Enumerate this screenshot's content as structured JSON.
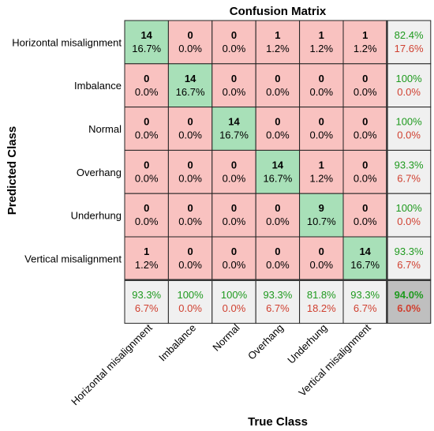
{
  "chart_data": {
    "type": "heatmap",
    "title": "Confusion Matrix",
    "xlabel": "True Class",
    "ylabel": "Predicted Class",
    "classes": [
      "Horizontal misalignment",
      "Imbalance",
      "Normal",
      "Overhang",
      "Underhung",
      "Vertical misalignment"
    ],
    "cells": [
      [
        {
          "count": "14",
          "pct": "16.7%"
        },
        {
          "count": "0",
          "pct": "0.0%"
        },
        {
          "count": "0",
          "pct": "0.0%"
        },
        {
          "count": "1",
          "pct": "1.2%"
        },
        {
          "count": "1",
          "pct": "1.2%"
        },
        {
          "count": "1",
          "pct": "1.2%"
        }
      ],
      [
        {
          "count": "0",
          "pct": "0.0%"
        },
        {
          "count": "14",
          "pct": "16.7%"
        },
        {
          "count": "0",
          "pct": "0.0%"
        },
        {
          "count": "0",
          "pct": "0.0%"
        },
        {
          "count": "0",
          "pct": "0.0%"
        },
        {
          "count": "0",
          "pct": "0.0%"
        }
      ],
      [
        {
          "count": "0",
          "pct": "0.0%"
        },
        {
          "count": "0",
          "pct": "0.0%"
        },
        {
          "count": "14",
          "pct": "16.7%"
        },
        {
          "count": "0",
          "pct": "0.0%"
        },
        {
          "count": "0",
          "pct": "0.0%"
        },
        {
          "count": "0",
          "pct": "0.0%"
        }
      ],
      [
        {
          "count": "0",
          "pct": "0.0%"
        },
        {
          "count": "0",
          "pct": "0.0%"
        },
        {
          "count": "0",
          "pct": "0.0%"
        },
        {
          "count": "14",
          "pct": "16.7%"
        },
        {
          "count": "1",
          "pct": "1.2%"
        },
        {
          "count": "0",
          "pct": "0.0%"
        }
      ],
      [
        {
          "count": "0",
          "pct": "0.0%"
        },
        {
          "count": "0",
          "pct": "0.0%"
        },
        {
          "count": "0",
          "pct": "0.0%"
        },
        {
          "count": "0",
          "pct": "0.0%"
        },
        {
          "count": "9",
          "pct": "10.7%"
        },
        {
          "count": "0",
          "pct": "0.0%"
        }
      ],
      [
        {
          "count": "1",
          "pct": "1.2%"
        },
        {
          "count": "0",
          "pct": "0.0%"
        },
        {
          "count": "0",
          "pct": "0.0%"
        },
        {
          "count": "0",
          "pct": "0.0%"
        },
        {
          "count": "0",
          "pct": "0.0%"
        },
        {
          "count": "14",
          "pct": "16.7%"
        }
      ]
    ],
    "row_summary": [
      {
        "good": "82.4%",
        "bad": "17.6%"
      },
      {
        "good": "100%",
        "bad": "0.0%"
      },
      {
        "good": "100%",
        "bad": "0.0%"
      },
      {
        "good": "93.3%",
        "bad": "6.7%"
      },
      {
        "good": "100%",
        "bad": "0.0%"
      },
      {
        "good": "93.3%",
        "bad": "6.7%"
      }
    ],
    "col_summary": [
      {
        "good": "93.3%",
        "bad": "6.7%"
      },
      {
        "good": "100%",
        "bad": "0.0%"
      },
      {
        "good": "100%",
        "bad": "0.0%"
      },
      {
        "good": "93.3%",
        "bad": "6.7%"
      },
      {
        "good": "81.8%",
        "bad": "18.2%"
      },
      {
        "good": "93.3%",
        "bad": "6.7%"
      }
    ],
    "overall": {
      "good": "94.0%",
      "bad": "6.0%"
    },
    "colors": {
      "diagonal": "#a8e0b8",
      "off_diagonal": "#f9c2c0",
      "summary": "#f0f0f0",
      "overall": "#bfbfbf",
      "good_text": "#1f9a1f",
      "bad_text": "#d04030"
    },
    "grid": true,
    "legend": "none"
  }
}
